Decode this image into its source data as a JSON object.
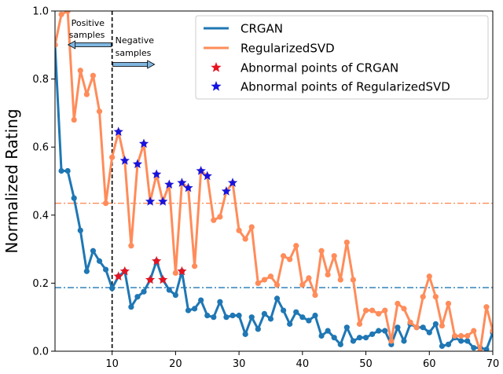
{
  "chart_data": {
    "type": "line",
    "xlabel": "",
    "ylabel": "Normalized Rating",
    "xlim": [
      1,
      70
    ],
    "ylim": [
      0,
      1
    ],
    "x_ticks": [
      10,
      20,
      30,
      40,
      50,
      60,
      70
    ],
    "y_ticks": [
      0.0,
      0.2,
      0.4,
      0.6,
      0.8,
      1.0
    ],
    "x_tick_labels": [
      "10",
      "20",
      "30",
      "40",
      "50",
      "60",
      "70"
    ],
    "y_tick_labels": [
      "0.0",
      "0.2",
      "0.4",
      "0.6",
      "0.8",
      "1.0"
    ],
    "grid": false,
    "legend_position": "top-right",
    "colors": {
      "crgan": "#1f77b4",
      "regsvd": "#ff8c5a",
      "abnormal_crgan": "#e8121e",
      "abnormal_regsvd": "#1414e0"
    },
    "x": [
      1,
      2,
      3,
      4,
      5,
      6,
      7,
      8,
      9,
      10,
      11,
      12,
      13,
      14,
      15,
      16,
      17,
      18,
      19,
      20,
      21,
      22,
      23,
      24,
      25,
      26,
      27,
      28,
      29,
      30,
      31,
      32,
      33,
      34,
      35,
      36,
      37,
      38,
      39,
      40,
      41,
      42,
      43,
      44,
      45,
      46,
      47,
      48,
      49,
      50,
      51,
      52,
      53,
      54,
      55,
      56,
      57,
      58,
      59,
      60,
      61,
      62,
      63,
      64,
      65,
      66,
      67,
      68,
      69,
      70
    ],
    "series": [
      {
        "name": "CRGAN",
        "values": [
          0.9,
          0.53,
          0.53,
          0.45,
          0.355,
          0.235,
          0.295,
          0.265,
          0.24,
          0.185,
          0.22,
          0.235,
          0.13,
          0.16,
          0.175,
          0.21,
          0.265,
          0.21,
          0.18,
          0.165,
          0.235,
          0.12,
          0.125,
          0.15,
          0.105,
          0.1,
          0.145,
          0.1,
          0.105,
          0.105,
          0.05,
          0.1,
          0.065,
          0.11,
          0.095,
          0.155,
          0.12,
          0.08,
          0.115,
          0.1,
          0.09,
          0.105,
          0.045,
          0.06,
          0.04,
          0.02,
          0.07,
          0.03,
          0.04,
          0.04,
          0.05,
          0.06,
          0.06,
          0.02,
          0.07,
          0.03,
          0.08,
          0.07,
          0.07,
          0.055,
          0.08,
          0.015,
          0.02,
          0.04,
          0.03,
          0.03,
          0.01,
          0.01,
          0.005,
          0.055
        ]
      },
      {
        "name": "RegularizedSVD",
        "values": [
          0.9,
          0.99,
          1.0,
          0.68,
          0.825,
          0.755,
          0.81,
          0.705,
          0.435,
          0.57,
          0.645,
          0.56,
          0.31,
          0.55,
          0.61,
          0.44,
          0.52,
          0.44,
          0.49,
          0.23,
          0.495,
          0.48,
          0.25,
          0.53,
          0.515,
          0.385,
          0.395,
          0.47,
          0.495,
          0.355,
          0.33,
          0.365,
          0.2,
          0.21,
          0.22,
          0.195,
          0.28,
          0.27,
          0.31,
          0.195,
          0.215,
          0.165,
          0.295,
          0.225,
          0.28,
          0.21,
          0.32,
          0.21,
          0.08,
          0.12,
          0.12,
          0.11,
          0.12,
          0.03,
          0.14,
          0.125,
          0.085,
          0.07,
          0.16,
          0.22,
          0.16,
          0.075,
          0.14,
          0.045,
          0.045,
          0.045,
          0.06,
          0.0,
          0.13,
          0.06
        ]
      }
    ],
    "abnormal_points": [
      {
        "name": "Abnormal points of CRGAN",
        "x": [
          11,
          12,
          16,
          17,
          18,
          21
        ],
        "values": [
          0.22,
          0.235,
          0.21,
          0.265,
          0.21,
          0.235
        ]
      },
      {
        "name": "Abnormal points of RegularizedSVD",
        "x": [
          11,
          12,
          14,
          15,
          16,
          17,
          18,
          19,
          21,
          22,
          24,
          25,
          28,
          29
        ],
        "values": [
          0.645,
          0.56,
          0.55,
          0.61,
          0.44,
          0.52,
          0.44,
          0.49,
          0.495,
          0.48,
          0.53,
          0.515,
          0.47,
          0.495
        ]
      }
    ],
    "reference_lines": [
      {
        "series": "RegularizedSVD",
        "y": 0.435
      },
      {
        "series": "CRGAN",
        "y": 0.187
      }
    ],
    "divider_x": 10,
    "annotations": {
      "positive_line1": "Positive",
      "positive_line2": "samples",
      "negative_line1": "Negative",
      "negative_line2": "samples"
    }
  }
}
